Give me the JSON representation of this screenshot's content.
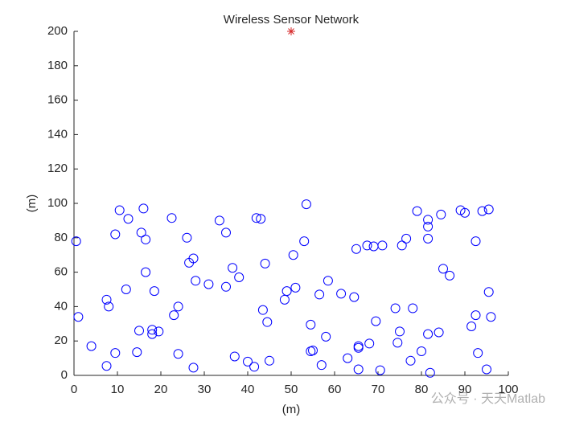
{
  "chart_data": {
    "type": "scatter",
    "title": "Wireless Sensor Network",
    "xlabel": "(m)",
    "ylabel": "(m)",
    "xlim": [
      0,
      100
    ],
    "ylim": [
      0,
      200
    ],
    "xticks": [
      0,
      10,
      20,
      30,
      40,
      50,
      60,
      70,
      80,
      90,
      100
    ],
    "yticks": [
      0,
      20,
      40,
      60,
      80,
      100,
      120,
      140,
      160,
      180,
      200
    ],
    "grid": false,
    "series": [
      {
        "marker": "o",
        "color": "#0000ff",
        "x": [
          0.5,
          1,
          4,
          7.5,
          7.5,
          8,
          9.5,
          9.5,
          10.5,
          12,
          12.5,
          14.5,
          15,
          15.5,
          16,
          16.5,
          16.5,
          18,
          18,
          18.5,
          19.5,
          22.5,
          23,
          24,
          24,
          26,
          26.5,
          27.5,
          27.5,
          28,
          31,
          33.5,
          35,
          35,
          36.5,
          37,
          38,
          40,
          41.5,
          42,
          43,
          43.5,
          44,
          44.5,
          45,
          48.5,
          49,
          50.5,
          51,
          53,
          53.5,
          54.5,
          54.5,
          55,
          56.5,
          57,
          58,
          58.5,
          61.5,
          63,
          64.5,
          65,
          65.5,
          65.5,
          65.5,
          67.5,
          68,
          69,
          69.5,
          70.5,
          71,
          74,
          74.5,
          75,
          75.5,
          76.5,
          77.5,
          78,
          79,
          80,
          81.5,
          81.5,
          81.5,
          81.5,
          82,
          84,
          84.5,
          85,
          86.5,
          89,
          90,
          91.5,
          92.5,
          92.5,
          93,
          94,
          95,
          95.5,
          95.5,
          96
        ],
        "values": [
          78,
          34,
          17,
          5.5,
          44,
          40,
          13,
          82,
          96,
          50,
          91,
          13.5,
          26,
          83,
          97,
          79,
          60,
          26.5,
          24,
          49,
          25.5,
          91.5,
          35,
          12.5,
          40,
          80,
          65.5,
          68,
          4.5,
          55,
          53,
          90,
          83,
          51.5,
          62.5,
          11,
          57,
          8,
          5,
          91.5,
          91,
          38,
          65,
          31,
          8.5,
          44,
          49,
          70,
          51,
          78,
          99.5,
          29.5,
          14,
          14.5,
          47,
          6,
          22.5,
          55,
          47.5,
          10,
          45.5,
          73.5,
          17,
          16,
          3.5,
          75.5,
          18.5,
          75,
          31.5,
          3,
          75.5,
          39,
          19,
          25.5,
          75.5,
          79.5,
          8.5,
          39,
          95.5,
          14,
          24,
          90.5,
          86.5,
          79.5,
          1.5,
          25,
          93.5,
          62,
          58,
          96,
          94.5,
          28.5,
          78,
          35,
          13,
          95.5,
          3.5,
          96.5,
          48.5,
          34
        ]
      },
      {
        "marker": "*",
        "color": "#d62728",
        "x": [
          50
        ],
        "values": [
          200
        ]
      }
    ],
    "watermark": "公众号 · 天天Matlab"
  }
}
